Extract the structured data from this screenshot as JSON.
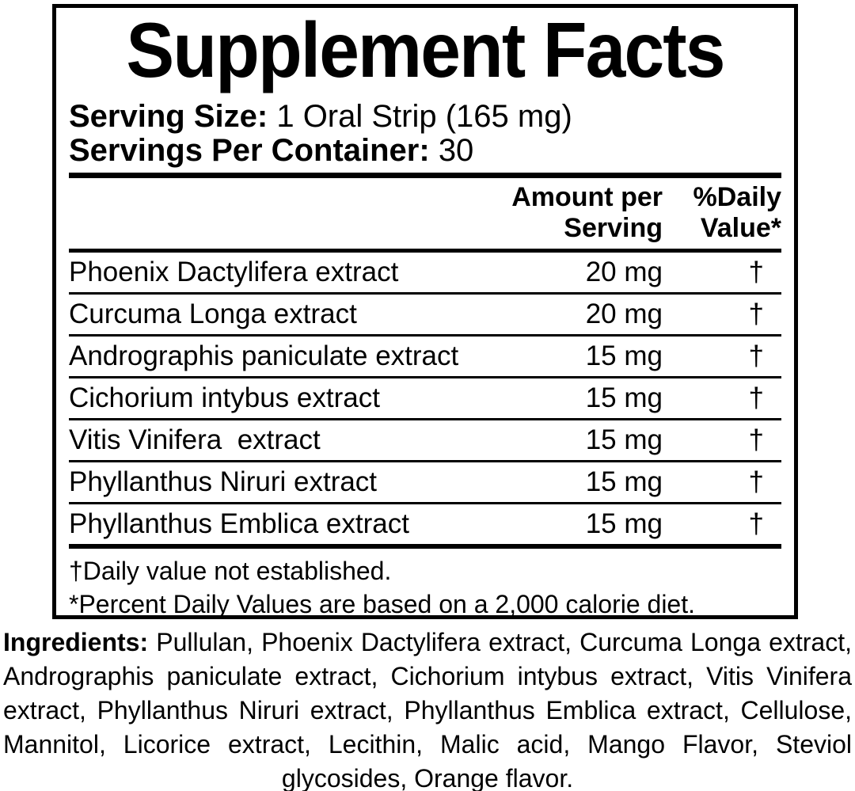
{
  "colors": {
    "text": "#000000",
    "background": "#ffffff",
    "border": "#000000"
  },
  "label": {
    "title": "Supplement Facts",
    "serving_size_label": "Serving Size:",
    "serving_size_value": "1 Oral Strip (165 mg)",
    "servings_per_container_label": "Servings Per Container:",
    "servings_per_container_value": "30",
    "table": {
      "amount_header_line1": "Amount per",
      "amount_header_line2": "Serving",
      "dv_header_line1": "%Daily",
      "dv_header_line2": "Value*",
      "rows": [
        {
          "name": "Phoenix Dactylifera extract",
          "amount": "20 mg",
          "dv": "†"
        },
        {
          "name": "Curcuma Longa extract",
          "amount": "20 mg",
          "dv": "†"
        },
        {
          "name": "Andrographis paniculate extract",
          "amount": "15 mg",
          "dv": "†"
        },
        {
          "name": "Cichorium intybus extract",
          "amount": "15 mg",
          "dv": "†"
        },
        {
          "name": "Vitis Vinifera  extract",
          "amount": "15 mg",
          "dv": "†"
        },
        {
          "name": "Phyllanthus Niruri extract",
          "amount": "15 mg",
          "dv": "†"
        },
        {
          "name": "Phyllanthus Emblica extract",
          "amount": "15 mg",
          "dv": "†"
        }
      ]
    },
    "footnotes": [
      "†Daily value not established.",
      "*Percent Daily Values are based on a 2,000 calorie diet."
    ],
    "ingredients_label": "Ingredients:",
    "ingredients_text": "Pullulan, Phoenix Dactylifera extract, Curcuma Longa extract, Andrographis paniculate extract, Cichorium intybus extract, Vitis Vinifera extract, Phyllanthus Niruri extract, Phyllanthus Emblica extract, Cellulose, Mannitol, Licorice extract, Lecithin, Malic acid, Mango Flavor, Steviol glycosides, Orange flavor."
  }
}
